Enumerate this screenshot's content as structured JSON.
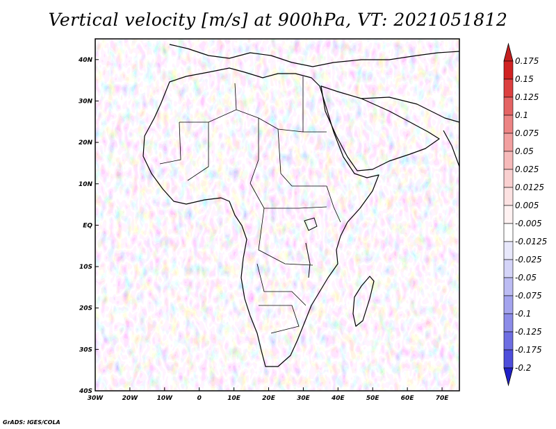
{
  "title": "Vertical velocity [m/s] at 900hPa, VT: 2021051812",
  "footer": "GrADS: IGES/COLA",
  "map": {
    "lon_range": [
      -30,
      75
    ],
    "lat_range": [
      -40,
      45
    ],
    "x_ticks": [
      {
        "lon": -30,
        "label": "30W"
      },
      {
        "lon": -20,
        "label": "20W"
      },
      {
        "lon": -10,
        "label": "10W"
      },
      {
        "lon": 0,
        "label": "0"
      },
      {
        "lon": 10,
        "label": "10E"
      },
      {
        "lon": 20,
        "label": "20E"
      },
      {
        "lon": 30,
        "label": "30E"
      },
      {
        "lon": 40,
        "label": "40E"
      },
      {
        "lon": 50,
        "label": "50E"
      },
      {
        "lon": 60,
        "label": "60E"
      },
      {
        "lon": 70,
        "label": "70E"
      }
    ],
    "y_ticks": [
      {
        "lat": 40,
        "label": "40N"
      },
      {
        "lat": 30,
        "label": "30N"
      },
      {
        "lat": 20,
        "label": "20N"
      },
      {
        "lat": 10,
        "label": "10N"
      },
      {
        "lat": 0,
        "label": "EQ"
      },
      {
        "lat": -10,
        "label": "10S"
      },
      {
        "lat": -20,
        "label": "20S"
      },
      {
        "lat": -30,
        "label": "30S"
      },
      {
        "lat": -40,
        "label": "40S"
      }
    ]
  },
  "colorbar": {
    "levels": [
      {
        "label": "0.175",
        "color": "#d02222"
      },
      {
        "label": "0.15",
        "color": "#dc4040"
      },
      {
        "label": "0.125",
        "color": "#e46464"
      },
      {
        "label": "0.1",
        "color": "#ec8484"
      },
      {
        "label": "0.075",
        "color": "#f2a0a0"
      },
      {
        "label": "0.05",
        "color": "#f6baba"
      },
      {
        "label": "0.025",
        "color": "#f9d0d0"
      },
      {
        "label": "0.0125",
        "color": "#fce2e2"
      },
      {
        "label": "0.005",
        "color": "#fff2f2"
      },
      {
        "label": "-0.005",
        "color": "#ffffff"
      },
      {
        "label": "-0.0125",
        "color": "#e8e8fb"
      },
      {
        "label": "-0.025",
        "color": "#d4d4f8"
      },
      {
        "label": "-0.05",
        "color": "#bcbcf3"
      },
      {
        "label": "-0.075",
        "color": "#a4a4ee"
      },
      {
        "label": "-0.1",
        "color": "#8c8ce8"
      },
      {
        "label": "-0.125",
        "color": "#6e6ee2"
      },
      {
        "label": "-0.175",
        "color": "#4e4edb"
      },
      {
        "label": "-0.2",
        "color": "#3030d2"
      }
    ],
    "top_arrow_color": "#c42020",
    "bottom_arrow_color": "#2020c8",
    "bottom_fill_color": "#4040d4"
  }
}
